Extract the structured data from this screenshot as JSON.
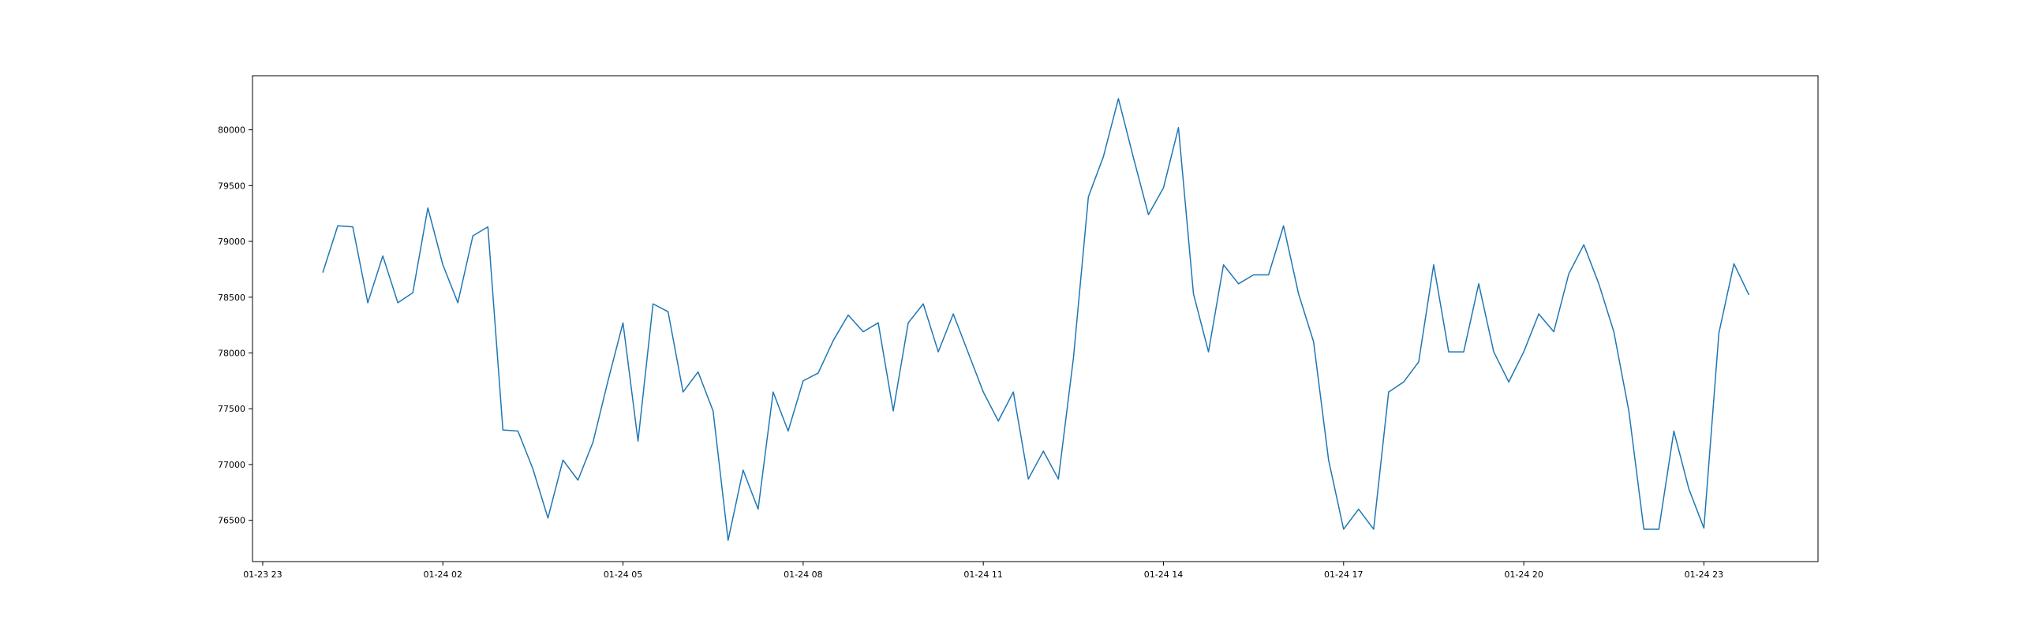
{
  "chart_data": {
    "type": "line",
    "title": "",
    "xlabel": "",
    "ylabel": "",
    "x_axis_kind": "datetime",
    "x_ticks": [
      {
        "label": "01-23 23",
        "value": 0
      },
      {
        "label": "01-24 02",
        "value": 3
      },
      {
        "label": "01-24 05",
        "value": 6
      },
      {
        "label": "01-24 08",
        "value": 9
      },
      {
        "label": "01-24 11",
        "value": 12
      },
      {
        "label": "01-24 14",
        "value": 15
      },
      {
        "label": "01-24 17",
        "value": 18
      },
      {
        "label": "01-24 20",
        "value": 21
      },
      {
        "label": "01-24 23",
        "value": 24
      }
    ],
    "xlim": [
      -0.17,
      25.9
    ],
    "y_ticks": [
      76500,
      77000,
      77500,
      78000,
      78500,
      79000,
      79500,
      80000
    ],
    "ylim": [
      76130,
      80485
    ],
    "grid": false,
    "color": "#1f77b4",
    "series": [
      {
        "x": [
          1,
          1.25,
          1.5,
          1.75,
          2,
          2.25,
          2.5,
          2.75,
          3,
          3.25,
          3.5,
          3.75,
          4,
          4.25,
          4.5,
          4.75,
          5,
          5.25,
          5.5,
          5.75,
          6,
          6.25,
          6.5,
          6.75,
          7,
          7.25,
          7.5,
          7.75,
          8,
          8.25,
          8.5,
          8.75,
          9,
          9.25,
          9.5,
          9.75,
          10,
          10.25,
          10.5,
          10.75,
          11,
          11.25,
          11.5,
          11.75,
          12,
          12.25,
          12.5,
          12.75,
          13,
          13.25,
          13.5,
          13.75,
          14,
          14.25,
          14.5,
          14.75,
          15,
          15.25,
          15.5,
          15.75,
          16,
          16.25,
          16.5,
          16.75,
          17,
          17.25,
          17.5,
          17.75,
          18,
          18.25,
          18.5,
          18.75,
          19,
          19.25,
          19.5,
          19.75,
          20,
          20.25,
          20.5,
          20.75,
          21,
          21.25,
          21.5,
          21.75,
          22,
          22.25,
          22.5,
          22.75,
          23,
          23.25,
          23.5,
          23.75,
          24,
          24.25,
          24.5,
          24.75
        ],
        "y": [
          78720,
          79140,
          79130,
          78450,
          78870,
          78450,
          78540,
          79300,
          78790,
          78450,
          79050,
          79130,
          77310,
          77300,
          76960,
          76520,
          77040,
          76860,
          77200,
          77750,
          78270,
          77210,
          78440,
          78370,
          77650,
          77830,
          77480,
          76320,
          76950,
          76600,
          77650,
          77300,
          77750,
          77820,
          78110,
          78340,
          78190,
          78270,
          77480,
          78270,
          78440,
          78010,
          78350,
          78000,
          77650,
          77390,
          77650,
          76870,
          77120,
          76870,
          77950,
          79400,
          79760,
          80280,
          79750,
          79240,
          79480,
          80020,
          78530,
          78010,
          78790,
          78620,
          78700,
          78700,
          79140,
          78530,
          78100,
          77040,
          76420,
          76600,
          76420,
          77650,
          77740,
          77920,
          78790,
          78010,
          78010,
          78620,
          78010,
          77740,
          78010,
          78350,
          78190,
          78710,
          78970,
          78620,
          78190,
          77480,
          76420,
          76420,
          77300,
          76780,
          76430,
          78180,
          78800,
          78520
        ]
      }
    ]
  }
}
